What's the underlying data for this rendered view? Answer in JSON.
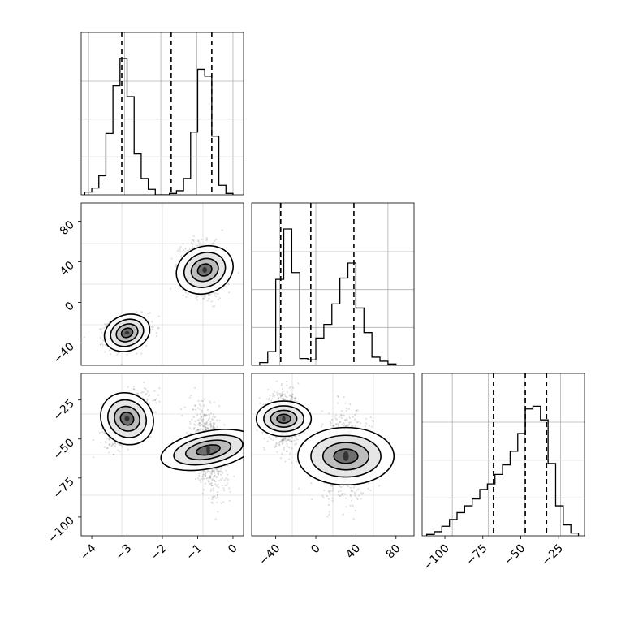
{
  "chart_data": {
    "type": "corner",
    "grid": true,
    "legend": "none",
    "parameters": 3,
    "panels": [
      {
        "kind": "histogram",
        "row": 0,
        "col": 0,
        "xlim": [
          -4.3,
          0.3
        ],
        "bins": [
          -4.2,
          -4.0,
          -3.8,
          -3.6,
          -3.4,
          -3.2,
          -3.0,
          -2.8,
          -2.6,
          -2.4,
          -2.2,
          -2.0,
          -1.8,
          -1.6,
          -1.4,
          -1.2,
          -1.0,
          -0.8,
          -0.6,
          -0.4,
          -0.2,
          0.0
        ],
        "counts": [
          0.02,
          0.05,
          0.14,
          0.45,
          0.8,
          1.0,
          0.72,
          0.3,
          0.12,
          0.04,
          0.0,
          0.0,
          0.01,
          0.03,
          0.12,
          0.46,
          0.92,
          0.87,
          0.43,
          0.07,
          0.01
        ],
        "quantiles": [
          -3.15,
          -1.75,
          -0.6
        ]
      },
      {
        "kind": "density",
        "row": 1,
        "col": 0,
        "x_param": 0,
        "y_param": 1,
        "xlim": [
          -4.3,
          0.3
        ],
        "ylim": [
          -62,
          98
        ],
        "clusters": [
          {
            "center": [
              -3.0,
              -30
            ],
            "sx": 0.3,
            "sy": 8,
            "rho": 0.25
          },
          {
            "center": [
              -0.8,
              32
            ],
            "sx": 0.3,
            "sy": 13,
            "rho": -0.2
          }
        ],
        "y_ticks": [
          -40,
          0,
          40,
          80
        ]
      },
      {
        "kind": "histogram",
        "row": 1,
        "col": 1,
        "xlim": [
          -64,
          98
        ],
        "bins": [
          -56,
          -48,
          -40,
          -32,
          -24,
          -16,
          -8,
          0,
          8,
          16,
          24,
          32,
          40,
          48,
          56,
          64,
          72,
          80
        ],
        "counts": [
          0.02,
          0.1,
          0.63,
          1.0,
          0.68,
          0.05,
          0.04,
          0.2,
          0.3,
          0.45,
          0.64,
          0.75,
          0.42,
          0.24,
          0.06,
          0.03,
          0.01
        ],
        "quantiles": [
          -35,
          -5,
          38
        ]
      },
      {
        "kind": "density",
        "row": 2,
        "col": 0,
        "x_param": 0,
        "y_param": 2,
        "xlim": [
          -4.3,
          0.3
        ],
        "ylim": [
          -112,
          -8
        ],
        "clusters": [
          {
            "center": [
              -3.0,
              -37
            ],
            "sx": 0.32,
            "sy": 8,
            "rho": 0.5
          },
          {
            "center": [
              -0.7,
              -57
            ],
            "sx": 0.24,
            "sy": 14,
            "rho": -0.45
          }
        ],
        "y_ticks": [
          -100,
          -75,
          -50,
          -25
        ],
        "x_ticks": [
          -4,
          -3,
          -2,
          -1,
          0
        ]
      },
      {
        "kind": "density",
        "row": 2,
        "col": 1,
        "x_param": 1,
        "y_param": 2,
        "xlim": [
          -64,
          98
        ],
        "ylim": [
          -112,
          -8
        ],
        "clusters": [
          {
            "center": [
              -32,
              -37
            ],
            "sx": 8,
            "sy": 8,
            "rho": 0.0
          },
          {
            "center": [
              30,
              -61
            ],
            "sx": 13,
            "sy": 14,
            "rho": 0.0
          }
        ],
        "x_ticks": [
          -40,
          0,
          40,
          80
        ]
      },
      {
        "kind": "histogram",
        "row": 2,
        "col": 2,
        "xlim": [
          -115,
          -8
        ],
        "bins": [
          -112,
          -107,
          -102,
          -97,
          -92,
          -87,
          -82,
          -77,
          -72,
          -67,
          -62,
          -57,
          -52,
          -47,
          -42,
          -37,
          -32,
          -27,
          -22,
          -17,
          -12
        ],
        "counts": [
          0.01,
          0.03,
          0.07,
          0.12,
          0.17,
          0.22,
          0.27,
          0.34,
          0.38,
          0.45,
          0.52,
          0.62,
          0.75,
          0.93,
          0.95,
          0.85,
          0.53,
          0.22,
          0.08,
          0.02
        ],
        "quantiles": [
          -68,
          -47,
          -33
        ],
        "x_ticks": [
          -100,
          -75,
          -50,
          -25
        ]
      }
    ]
  }
}
